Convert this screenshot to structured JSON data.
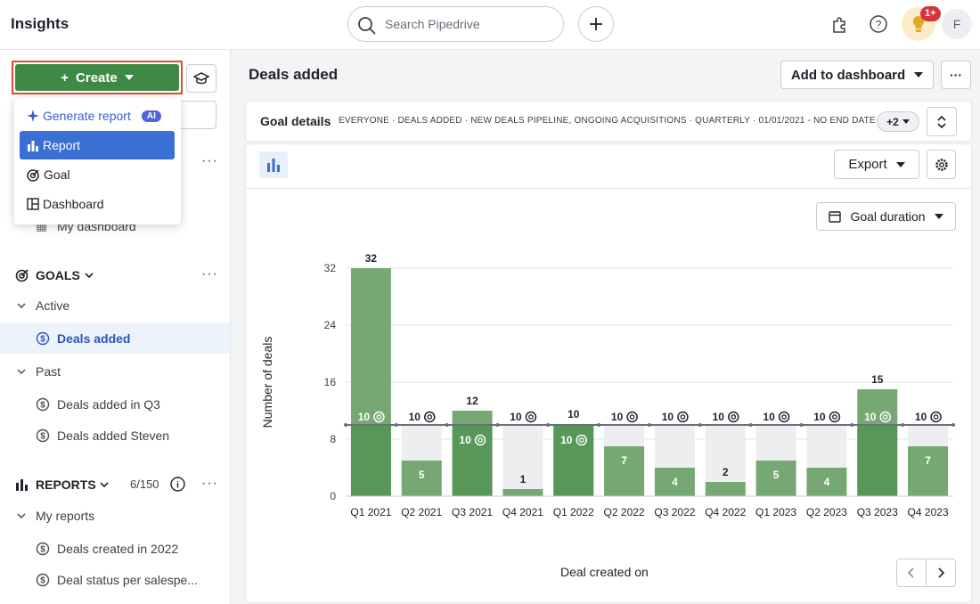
{
  "topbar": {
    "title": "Insights",
    "search_placeholder": "Search Pipedrive",
    "badge": "1+",
    "avatar_initial": "F"
  },
  "sidebar": {
    "create_label": "Create",
    "menu": [
      {
        "label": "Generate report",
        "badge": "AI"
      },
      {
        "label": "Report"
      },
      {
        "label": "Goal"
      },
      {
        "label": "Dashboard"
      }
    ],
    "my_dashboard": "My dashboard",
    "goals_title": "GOALS",
    "active_label": "Active",
    "active_goal": "Deals added",
    "past_label": "Past",
    "past_goals": [
      "Deals added in Q3",
      "Deals added Steven"
    ],
    "reports_title": "REPORTS",
    "reports_count": "6/150",
    "my_reports": "My reports",
    "reports": [
      "Deals created in 2022",
      "Deal status per salespe..."
    ]
  },
  "main": {
    "title": "Deals added",
    "add_to_dashboard": "Add to dashboard",
    "goal_details_title": "Goal details",
    "goal_details_meta": "EVERYONE  ·  DEALS ADDED  ·  NEW DEALS PIPELINE, ONGOING ACQUISITIONS  ·  QUARTERLY  ·  01/01/2021 - NO END DATE",
    "more_filters": "+2",
    "export_label": "Export",
    "duration_label": "Goal duration",
    "xlabel": "Deal created on"
  },
  "chart_data": {
    "type": "bar",
    "categories": [
      "Q1 2021",
      "Q2 2021",
      "Q3 2021",
      "Q4 2021",
      "Q1 2022",
      "Q2 2022",
      "Q3 2022",
      "Q4 2022",
      "Q1 2023",
      "Q2 2023",
      "Q3 2023",
      "Q4 2023"
    ],
    "values": [
      32,
      5,
      12,
      1,
      10,
      7,
      4,
      2,
      5,
      4,
      15,
      7
    ],
    "goal": 10,
    "goal_labels": [
      "10",
      "10",
      "10",
      "10",
      "10",
      "10",
      "10",
      "10",
      "10",
      "10",
      "10",
      "10"
    ],
    "value_labels": [
      "32",
      "5",
      "12",
      "1",
      "10",
      "7",
      "4",
      "2",
      "5",
      "4",
      "15",
      "7"
    ],
    "ylabel": "Number of deals",
    "xlabel": "Deal created on",
    "ylim": [
      0,
      32
    ],
    "yticks": [
      "0",
      "8",
      "16",
      "24",
      "32"
    ],
    "grid": true,
    "bar_color": "#76a874",
    "bar_goal_color": "#3e8a44",
    "remainder_color": "#eceef0"
  }
}
